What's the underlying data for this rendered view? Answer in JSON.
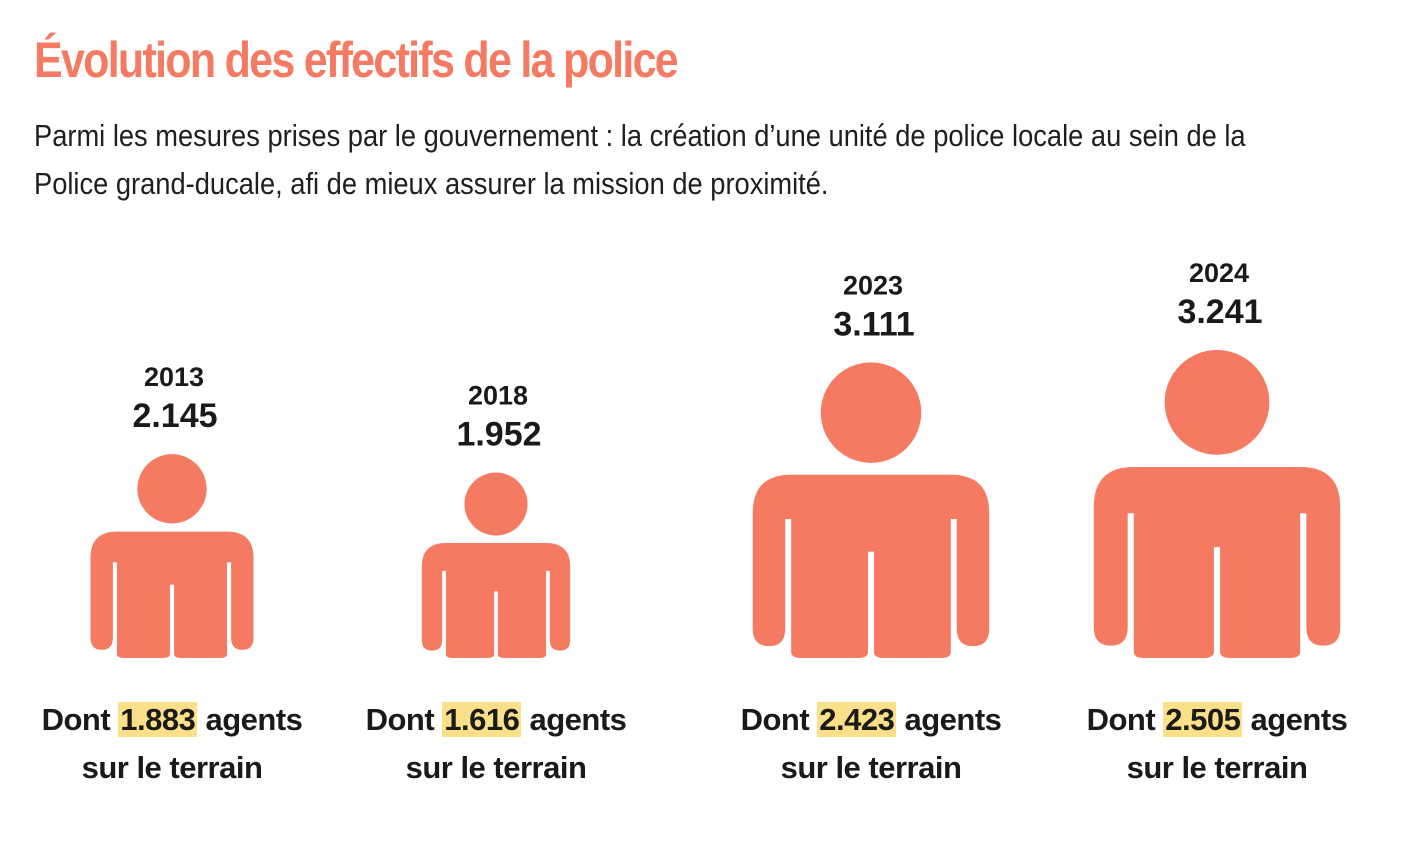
{
  "title": "Évolution des effectifs de la police",
  "subtitle": "Parmi les mesures prises par le gouvernement : la création d’une unité de police locale au sein de la Police grand-ducale, afi de mieux assurer la mission de proximité.",
  "colors": {
    "accent": "#f47a62",
    "highlight": "#fbe08a",
    "text": "#1a1a1a"
  },
  "chart_data": {
    "type": "bar",
    "icon": "person-icon",
    "categories": [
      "2013",
      "2018",
      "2023",
      "2024"
    ],
    "values": [
      2145,
      1952,
      3111,
      3241
    ],
    "value_labels": [
      "2.145",
      "1.952",
      "3.111",
      "3.241"
    ],
    "field_agents": [
      1883,
      1616,
      2423,
      2505
    ],
    "field_agent_labels": [
      "1.883",
      "1.616",
      "2.423",
      "2.505"
    ],
    "caption_prefix": "Dont",
    "caption_mid": "agents",
    "caption_suffix": "sur le terrain",
    "title": "Évolution des effectifs de la police",
    "xlabel": "",
    "ylabel": "",
    "grid": false,
    "legend": "none"
  }
}
